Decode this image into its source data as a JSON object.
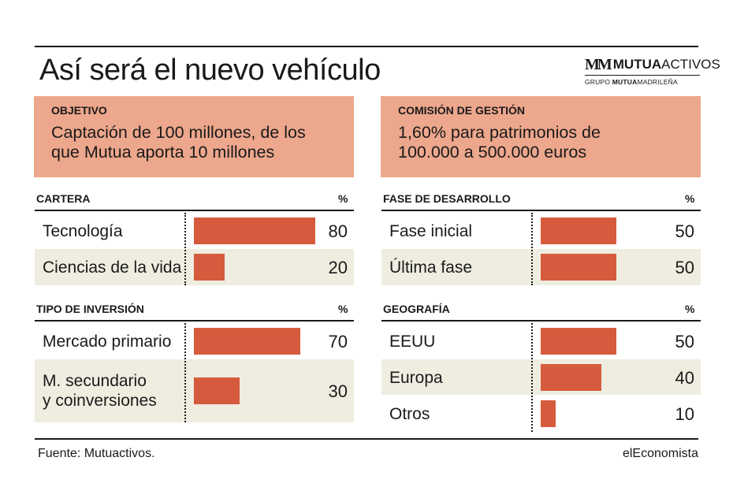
{
  "headline": "Así será el nuevo vehículo",
  "logo": {
    "mark": "MM",
    "name_bold": "MUTUA",
    "name_rest": "ACTIVOS",
    "sub_pre": "GRUPO ",
    "sub_bold": "MUTUA",
    "sub_rest": "MADRILEÑA"
  },
  "boxes": {
    "objetivo": {
      "title": "OBJETIVO",
      "line1": "Captación de 100 millones, de los",
      "line2": "que Mutua aporta 10 millones"
    },
    "comision": {
      "title": "COMISIÓN DE GESTIÓN",
      "line1": "1,60% para patrimonios de",
      "line2": "100.000 a 500.000 euros"
    }
  },
  "colors": {
    "bar": "#d65b3e",
    "box": "#eda78c",
    "band": "#efede0"
  },
  "chart_data": [
    {
      "type": "bar",
      "title": "CARTERA",
      "unit": "%",
      "categories": [
        "Tecnología",
        "Ciencias de la vida"
      ],
      "values": [
        80,
        20
      ],
      "xlim": [
        0,
        80
      ]
    },
    {
      "type": "bar",
      "title": "TIPO DE INVERSIÓN",
      "unit": "%",
      "categories": [
        "Mercado primario",
        "M. secundario y coinversiones"
      ],
      "category_lines": [
        [
          "Mercado primario"
        ],
        [
          "M. secundario",
          "y coinversiones"
        ]
      ],
      "values": [
        70,
        30
      ],
      "xlim": [
        0,
        80
      ]
    },
    {
      "type": "bar",
      "title": "FASE DE DESARROLLO",
      "unit": "%",
      "categories": [
        "Fase inicial",
        "Última fase"
      ],
      "values": [
        50,
        50
      ],
      "xlim": [
        0,
        80
      ]
    },
    {
      "type": "bar",
      "title": "GEOGRAFÍA",
      "unit": "%",
      "categories": [
        "EEUU",
        "Europa",
        "Otros"
      ],
      "values": [
        50,
        40,
        10
      ],
      "xlim": [
        0,
        80
      ]
    }
  ],
  "footer": {
    "source": "Fuente: Mutuactivos.",
    "brand": "elEconomista"
  }
}
